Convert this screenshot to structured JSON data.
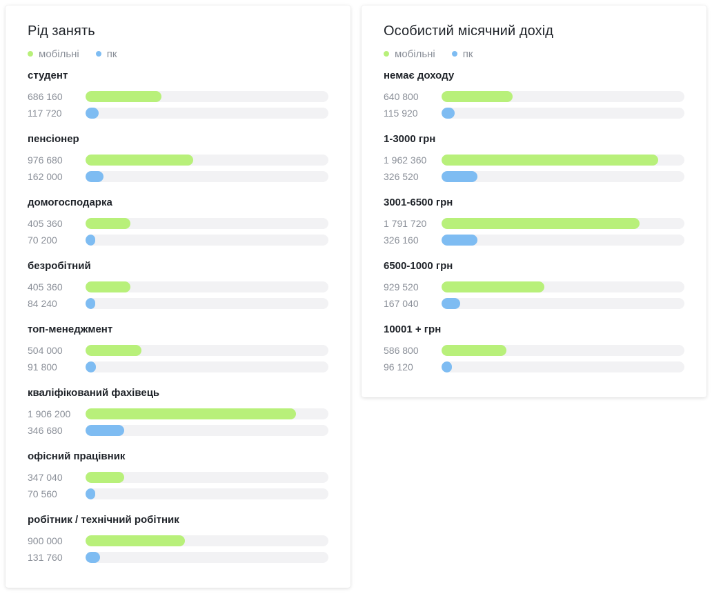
{
  "colors": {
    "mobile": "#b8f07a",
    "pc": "#7ebcf2"
  },
  "chart_data": [
    {
      "type": "bar",
      "orientation": "horizontal",
      "title": "Рід занять",
      "legend": [
        "мобільні",
        "пк"
      ],
      "legend_position": "top-left",
      "xlim": [
        0,
        2200000
      ],
      "categories": [
        "студент",
        "пенсіонер",
        "домогосподарка",
        "безробітний",
        "топ-менеджмент",
        "кваліфікований фахівець",
        "офісний працівник",
        "робітник / технічний робітник"
      ],
      "series": [
        {
          "name": "мобільні",
          "values": [
            686160,
            976680,
            405360,
            405360,
            504000,
            1906200,
            347040,
            900000
          ],
          "labels": [
            "686 160",
            "976 680",
            "405 360",
            "405 360",
            "504 000",
            "1 906 200",
            "347 040",
            "900 000"
          ]
        },
        {
          "name": "пк",
          "values": [
            117720,
            162000,
            70200,
            84240,
            91800,
            346680,
            70560,
            131760
          ],
          "labels": [
            "117 720",
            "162 000",
            "70 200",
            "84 240",
            "91 800",
            "346 680",
            "70 560",
            "131 760"
          ]
        }
      ]
    },
    {
      "type": "bar",
      "orientation": "horizontal",
      "title": "Особистий місячний дохід",
      "legend": [
        "мобільні",
        "пк"
      ],
      "legend_position": "top-left",
      "xlim": [
        0,
        2200000
      ],
      "categories": [
        "немає доходу",
        "1-3000 грн",
        "3001-6500 грн",
        "6500-1000 грн",
        "10001 + грн"
      ],
      "series": [
        {
          "name": "мобільні",
          "values": [
            640800,
            1962360,
            1791720,
            929520,
            586800
          ],
          "labels": [
            "640 800",
            "1 962 360",
            "1 791 720",
            "929 520",
            "586 800"
          ]
        },
        {
          "name": "пк",
          "values": [
            115920,
            326520,
            326160,
            167040,
            96120
          ],
          "labels": [
            "115 920",
            "326 520",
            "326 160",
            "167 040",
            "96 120"
          ]
        }
      ]
    }
  ]
}
